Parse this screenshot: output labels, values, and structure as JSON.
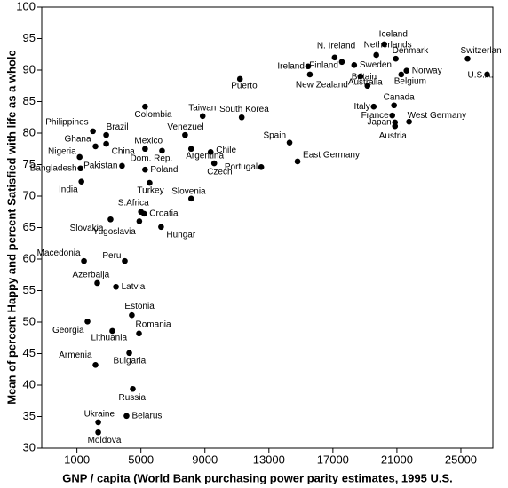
{
  "chart_data": {
    "type": "scatter",
    "xlabel": "GNP  / capita (World Bank purchasing power parity estimates, 1995 U.S.",
    "ylabel": "Mean of percent Happy and percent Satisfied with life as a whole",
    "xlim": [
      -1200,
      27000
    ],
    "ylim": [
      30,
      100
    ],
    "xticks": [
      1000,
      5000,
      9000,
      13000,
      17000,
      21000,
      25000
    ],
    "yticks": [
      30,
      35,
      40,
      45,
      50,
      55,
      60,
      65,
      70,
      75,
      80,
      85,
      90,
      95,
      100
    ],
    "color": "#000000",
    "labels": [
      "Philippines",
      "Ghana",
      "Brazil",
      "China",
      "Nigeria",
      "Bangladesh",
      "India",
      "Pakistan",
      "Colombia",
      "Mexico",
      "Venezuel",
      "Dom. Rep.",
      "Argentina",
      "Poland",
      "Turkey",
      "Chile",
      "Czech",
      "Taiwan",
      "South Korea",
      "Puerto",
      "Slovenia",
      "S.Africa",
      "Croatia",
      "Yugoslavia",
      "Slovakia",
      "Hungar",
      "Peru",
      "Macedonia",
      "Azerbaija",
      "Latvia",
      "Estonia",
      "Georgia",
      "Lithuania",
      "Romania",
      "Armenia",
      "Bulgaria",
      "Russia",
      "Ukraine",
      "Belarus",
      "Moldova",
      "Portugal",
      "Spain",
      "East Germany",
      "Ireland",
      "N. Ireland",
      "Finland",
      "Sweden",
      "New Zealand",
      "Netherlands",
      "Iceland",
      "Australia",
      "Denmark",
      "Norway",
      "Belgium",
      "Switzerlan",
      "U.S.A.",
      "Britain",
      "Italy",
      "Canada",
      "France",
      "West Germany",
      "Japan",
      "Austria"
    ],
    "x": [
      2000,
      2160,
      2830,
      2830,
      1170,
      1220,
      1280,
      3820,
      5260,
      5260,
      7760,
      6320,
      8140,
      5260,
      5540,
      9360,
      9580,
      8860,
      11300,
      11190,
      8140,
      5000,
      5200,
      4900,
      3100,
      6260,
      3990,
      1440,
      2270,
      3440,
      4430,
      1660,
      3210,
      4880,
      2160,
      4270,
      4490,
      2330,
      4100,
      2330,
      12520,
      14290,
      14790,
      15450,
      17110,
      17560,
      18330,
      15560,
      19710,
      20210,
      18720,
      20930,
      21600,
      21270,
      25420,
      26640,
      19160,
      19550,
      20820,
      20710,
      21760,
      20880,
      20880
    ],
    "values": [
      80.3,
      77.9,
      79.7,
      78.3,
      76.2,
      74.4,
      72.3,
      74.8,
      84.2,
      77.5,
      79.7,
      77.2,
      77.5,
      74.2,
      72.1,
      77.0,
      75.2,
      82.7,
      82.5,
      88.6,
      69.6,
      67.5,
      67.2,
      66.0,
      66.3,
      65.1,
      59.7,
      59.7,
      56.2,
      55.6,
      51.1,
      50.1,
      48.6,
      48.2,
      43.2,
      45.1,
      39.4,
      34.1,
      35.1,
      32.5,
      74.6,
      78.5,
      75.5,
      90.6,
      92.0,
      91.3,
      90.8,
      89.3,
      92.4,
      94.1,
      89.0,
      91.8,
      89.9,
      89.3,
      91.8,
      89.3,
      87.5,
      84.2,
      84.4,
      82.8,
      81.8,
      81.7,
      81.1
    ]
  }
}
